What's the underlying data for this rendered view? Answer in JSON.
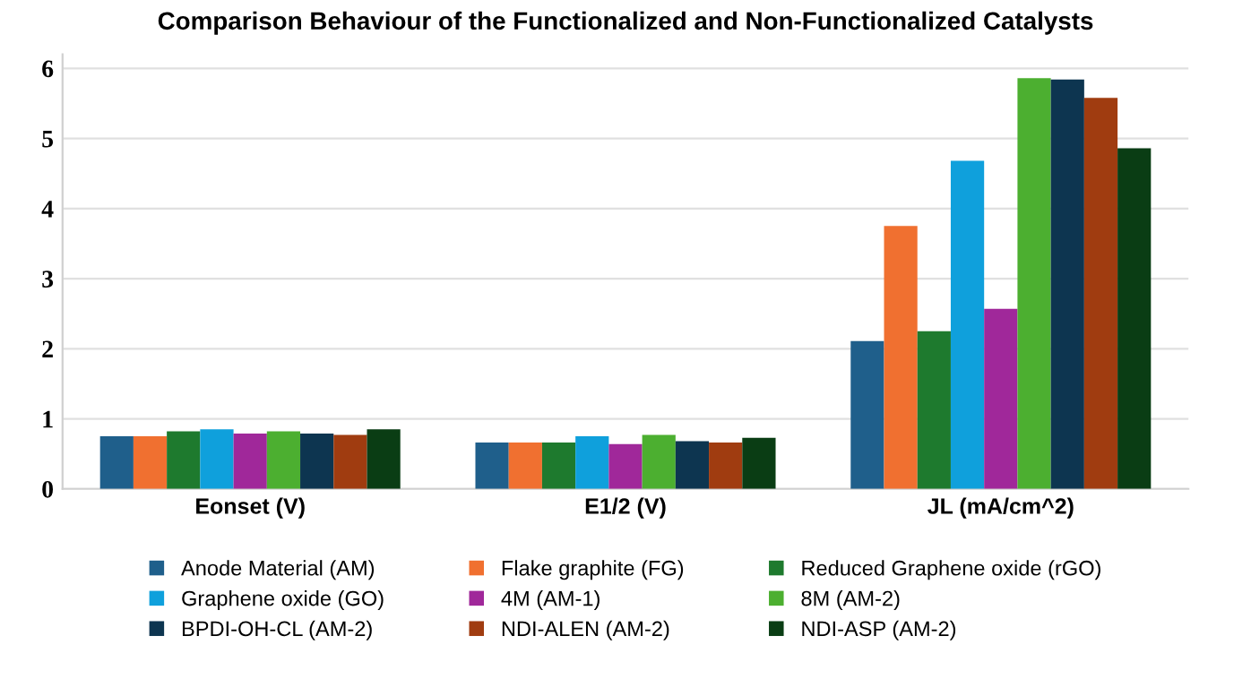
{
  "chart_data": {
    "type": "bar",
    "title": "Comparison Behaviour of the Functionalized and Non-Functionalized Catalysts",
    "categories": [
      "Eonset (V)",
      "E1/2 (V)",
      "JL (mA/cm^2)"
    ],
    "series": [
      {
        "name": "Anode Material (AM)",
        "color": "#1f5f8b",
        "values": [
          0.75,
          0.66,
          2.11
        ]
      },
      {
        "name": "Flake graphite (FG)",
        "color": "#f07030",
        "values": [
          0.75,
          0.66,
          3.75
        ]
      },
      {
        "name": "Reduced Graphene oxide (rGO)",
        "color": "#1e7a2e",
        "values": [
          0.82,
          0.66,
          2.25
        ]
      },
      {
        "name": "Graphene oxide (GO)",
        "color": "#0fa0dc",
        "values": [
          0.85,
          0.75,
          4.68
        ]
      },
      {
        "name": "4M (AM-1)",
        "color": "#a0289a",
        "values": [
          0.79,
          0.64,
          2.57
        ]
      },
      {
        "name": "8M (AM-2)",
        "color": "#4caf30",
        "values": [
          0.82,
          0.77,
          5.86
        ]
      },
      {
        "name": "BPDI-OH-CL (AM-2)",
        "color": "#0d3550",
        "values": [
          0.79,
          0.68,
          5.84
        ]
      },
      {
        "name": "NDI-ALEN (AM-2)",
        "color": "#a03c10",
        "values": [
          0.77,
          0.66,
          5.58
        ]
      },
      {
        "name": "NDI-ASP (AM-2)",
        "color": "#0a3d14",
        "values": [
          0.85,
          0.73,
          4.86
        ]
      }
    ],
    "ylim": [
      0,
      6.2
    ],
    "yticks": [
      0,
      1,
      2,
      3,
      4,
      5,
      6
    ],
    "grid": "y",
    "legend": "bottom"
  }
}
